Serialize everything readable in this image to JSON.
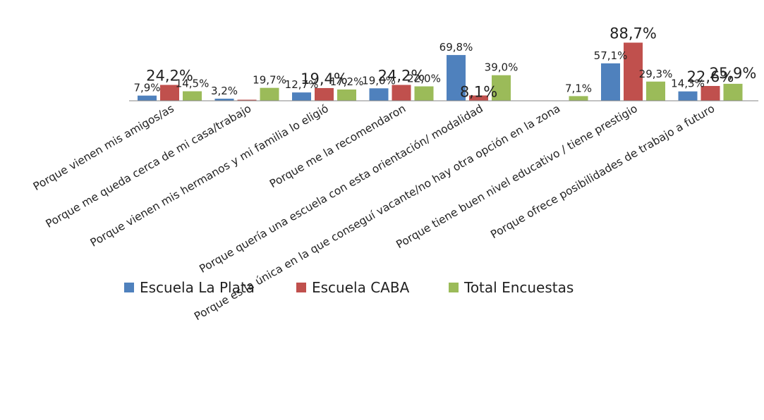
{
  "chart_data": {
    "type": "bar",
    "categories": [
      "Porque vienen mis amigos/as",
      "Porque me queda cerca de mi casa/trabajo",
      "Porque vienen mis hermanos y mi familia lo eligió",
      "Porque me la recomendaron",
      "Porque quería una escuela con esta orientación/ modalidad",
      "Porque es la única en la que conseguí vacante/no hay otra opción en la zona",
      "Porque tiene buen nivel educativo / tiene prestigio",
      "Porque ofrece posibilidades de trabajo a futuro"
    ],
    "series": [
      {
        "name": "Escuela La Plata",
        "color": "#4F81BD",
        "values": [
          7.9,
          3.2,
          12.7,
          19.0,
          69.8,
          null,
          57.1,
          14.3
        ],
        "labels": [
          "7,9%",
          "3,2%",
          "12,7%",
          "19,0%",
          "69,8%",
          "",
          "57,1%",
          "14,3%"
        ]
      },
      {
        "name": "Escuela CABA",
        "color": "#C0504D",
        "values": [
          24.2,
          1.6,
          19.4,
          24.2,
          8.1,
          null,
          88.7,
          22.6
        ],
        "labels": [
          "24,2%",
          "",
          "19,4%",
          "24,2%",
          "8,1%",
          "",
          "88,7%",
          "22,6%"
        ]
      },
      {
        "name": "Total Encuestas",
        "color": "#9BBB59",
        "values": [
          14.5,
          19.7,
          17.2,
          22.0,
          39.0,
          7.1,
          29.3,
          25.9
        ],
        "labels": [
          "14,5%",
          "19,7%",
          "17,2%",
          "22,0%",
          "39,0%",
          "7,1%",
          "29,3%",
          "25,9%"
        ]
      }
    ],
    "value_format": "percent-comma-decimal",
    "ylim": [
      0,
      90
    ],
    "grid": false,
    "legend_position": "bottom-overlapping"
  }
}
